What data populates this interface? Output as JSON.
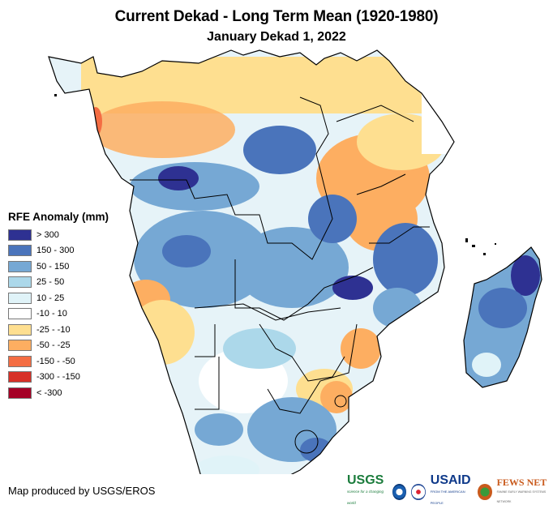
{
  "header": {
    "title": "Current Dekad - Long Term Mean (1920-1980)",
    "subtitle": "January Dekad 1, 2022"
  },
  "legend": {
    "title": "RFE Anomaly (mm)",
    "items": [
      {
        "label": "> 300",
        "color": "#2e3192"
      },
      {
        "label": "150 - 300",
        "color": "#4a74bb"
      },
      {
        "label": "50 - 150",
        "color": "#76a8d4"
      },
      {
        "label": "25 - 50",
        "color": "#acd8ea"
      },
      {
        "label": "10 - 25",
        "color": "#e0f3f8"
      },
      {
        "label": "-10 - 10",
        "color": "#ffffff"
      },
      {
        "label": "-25 - -10",
        "color": "#fedf90"
      },
      {
        "label": "-50 - -25",
        "color": "#fdae61"
      },
      {
        "label": "-150 - -50",
        "color": "#f46d43"
      },
      {
        "label": "-300 - -150",
        "color": "#d73027"
      },
      {
        "label": "< -300",
        "color": "#a50026"
      }
    ]
  },
  "map": {
    "region": "Southern and Central Africa",
    "variable": "RFE Anomaly (mm)"
  },
  "footer": {
    "credit": "Map produced by USGS/EROS",
    "logos": {
      "usgs": "USGS",
      "usgs_tagline": "science for a changing world",
      "usaid": "USAID",
      "usaid_tagline": "FROM THE AMERICAN PEOPLE",
      "fews": "FEWS NET",
      "fews_tagline": "FAMINE EARLY WARNING SYSTEMS NETWORK"
    }
  }
}
